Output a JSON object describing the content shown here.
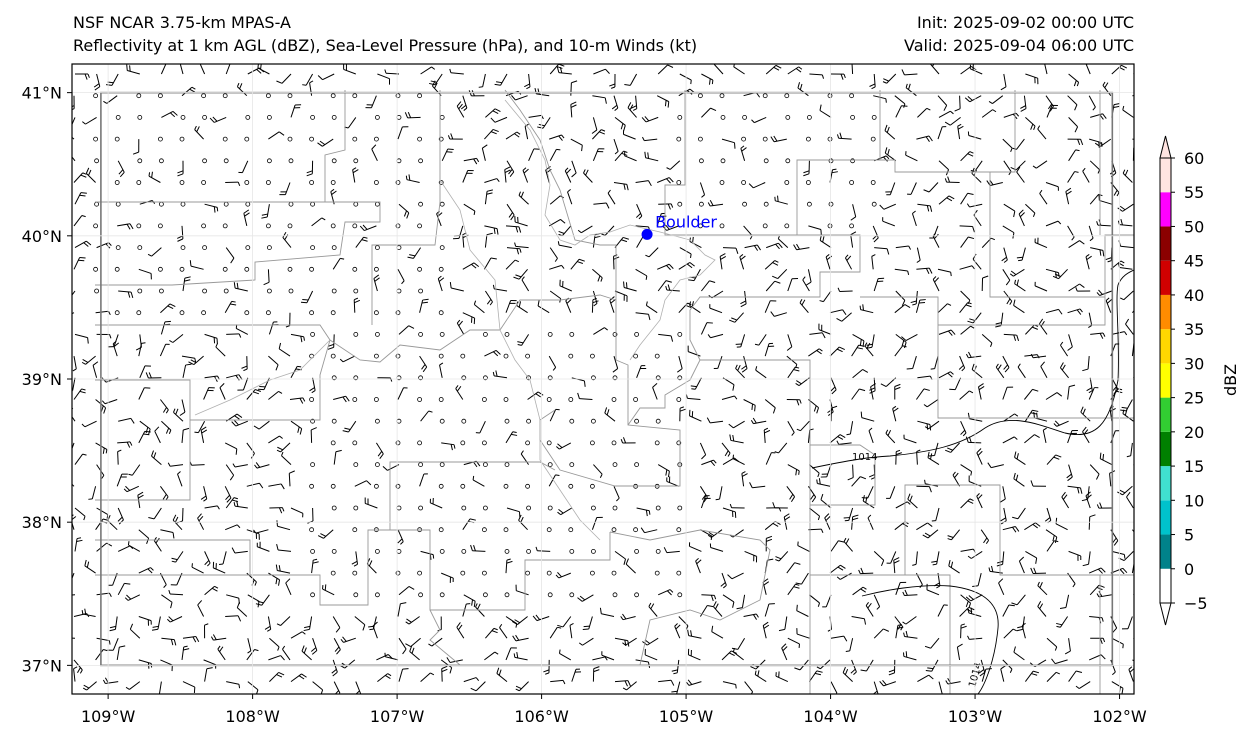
{
  "header": {
    "model": "NSF NCAR 3.75-km MPAS-A",
    "fields": "Reflectivity at 1 km AGL (dBZ), Sea-Level Pressure (hPa), and 10-m Winds (kt)",
    "init": "Init: 2025-09-02 00:00 UTC",
    "valid": "Valid: 2025-09-04 06:00 UTC"
  },
  "map": {
    "lon_range": [
      -109.25,
      -101.9
    ],
    "lat_range": [
      36.8,
      41.2
    ],
    "lat_ticks": [
      {
        "value": 41,
        "label": "41°N"
      },
      {
        "value": 40,
        "label": "40°N"
      },
      {
        "value": 39,
        "label": "39°N"
      },
      {
        "value": 38,
        "label": "38°N"
      },
      {
        "value": 37,
        "label": "37°N"
      }
    ],
    "lon_ticks": [
      {
        "value": -109,
        "label": "109°W"
      },
      {
        "value": -108,
        "label": "108°W"
      },
      {
        "value": -107,
        "label": "107°W"
      },
      {
        "value": -106,
        "label": "106°W"
      },
      {
        "value": -105,
        "label": "105°W"
      },
      {
        "value": -104,
        "label": "104°W"
      },
      {
        "value": -103,
        "label": "103°W"
      },
      {
        "value": -102,
        "label": "102°W"
      }
    ],
    "state_border": {
      "lon": [
        -109.05,
        -102.05
      ],
      "lat": [
        37.0,
        41.0
      ]
    },
    "city": {
      "name": "Boulder",
      "lon": -105.27,
      "lat": 40.01,
      "color": "#0000ff"
    },
    "isobar_labels": [
      "1014",
      "1014"
    ],
    "isobar_value_hpa": 1014
  },
  "colorbar": {
    "label": "dBZ",
    "tick_labels": [
      "−5",
      "0",
      "5",
      "10",
      "15",
      "20",
      "25",
      "30",
      "35",
      "40",
      "45",
      "50",
      "55",
      "60"
    ],
    "bins": [
      {
        "from": -5,
        "to": 0,
        "color": "#ffffff"
      },
      {
        "from": 0,
        "to": 5,
        "color": "#00828a"
      },
      {
        "from": 5,
        "to": 10,
        "color": "#00c2cc"
      },
      {
        "from": 10,
        "to": 15,
        "color": "#40e0d0"
      },
      {
        "from": 15,
        "to": 20,
        "color": "#008000"
      },
      {
        "from": 20,
        "to": 25,
        "color": "#32cd32"
      },
      {
        "from": 25,
        "to": 30,
        "color": "#ffff00"
      },
      {
        "from": 30,
        "to": 35,
        "color": "#ffd700"
      },
      {
        "from": 35,
        "to": 40,
        "color": "#ff8c00"
      },
      {
        "from": 40,
        "to": 45,
        "color": "#d10000"
      },
      {
        "from": 45,
        "to": 50,
        "color": "#8b0000"
      },
      {
        "from": 50,
        "to": 55,
        "color": "#ff00ff"
      },
      {
        "from": 55,
        "to": 60,
        "color": "#ffe4e1"
      }
    ]
  }
}
